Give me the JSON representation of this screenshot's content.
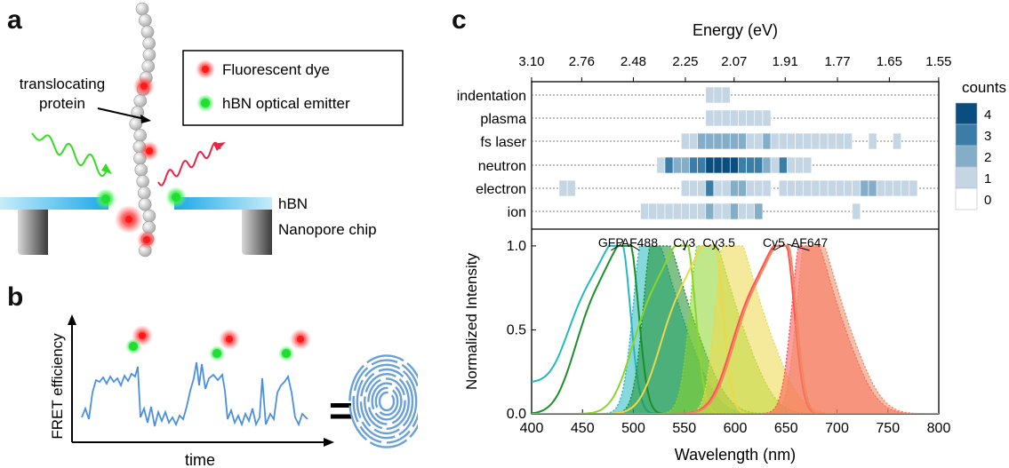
{
  "panels": {
    "a": "a",
    "b": "b",
    "c": "c"
  },
  "panel_a": {
    "protein_label": "translocating protein",
    "protein_label_lines": [
      "translocating",
      "protein"
    ],
    "legend": [
      {
        "label": "Fluorescent dye",
        "color": "#ff2a2a"
      },
      {
        "label": "hBN optical emitter",
        "color": "#22dd33"
      }
    ],
    "hbn_label": "hBN",
    "chip_label": "Nanopore chip"
  },
  "panel_b": {
    "ylabel": "FRET efficiency",
    "xlabel": "time",
    "equals": "="
  },
  "chart_data": [
    {
      "type": "heatmap",
      "top_axis_label": "Energy (eV)",
      "top_ticks": [
        "3.10",
        "2.76",
        "2.48",
        "2.25",
        "2.07",
        "1.91",
        "1.77",
        "1.65",
        "1.55"
      ],
      "rows": [
        "indentation",
        "plasma",
        "fs laser",
        "neutron",
        "electron",
        "ion"
      ],
      "colorbar": {
        "title": "counts",
        "ticks": [
          "4",
          "3",
          "2",
          "1",
          "0"
        ],
        "colors": [
          "#ffffff",
          "#c4d6e3",
          "#84aec8",
          "#3a7ea8",
          "#0a4d7f"
        ]
      },
      "cells": {
        "indentation": [
          [
            575,
            1
          ],
          [
            583,
            1
          ],
          [
            591,
            1
          ]
        ],
        "plasma": [
          [
            575,
            1
          ],
          [
            583,
            1
          ],
          [
            591,
            1
          ],
          [
            599,
            1
          ],
          [
            607,
            1
          ],
          [
            615,
            1
          ],
          [
            623,
            1
          ],
          [
            631,
            1
          ]
        ],
        "fs laser": [
          [
            551,
            1
          ],
          [
            559,
            1
          ],
          [
            567,
            2
          ],
          [
            575,
            2
          ],
          [
            583,
            2
          ],
          [
            591,
            2
          ],
          [
            599,
            2
          ],
          [
            607,
            2
          ],
          [
            615,
            1
          ],
          [
            623,
            1
          ],
          [
            631,
            2
          ],
          [
            639,
            1
          ],
          [
            647,
            1
          ],
          [
            655,
            1
          ],
          [
            663,
            1
          ],
          [
            671,
            1
          ],
          [
            679,
            1
          ],
          [
            687,
            1
          ],
          [
            695,
            1
          ],
          [
            703,
            1
          ],
          [
            711,
            1
          ],
          [
            735,
            1
          ],
          [
            759,
            1
          ]
        ],
        "neutron": [
          [
            527,
            1
          ],
          [
            535,
            3
          ],
          [
            543,
            2
          ],
          [
            551,
            2
          ],
          [
            559,
            3
          ],
          [
            567,
            3
          ],
          [
            575,
            4
          ],
          [
            583,
            4
          ],
          [
            591,
            4
          ],
          [
            599,
            4
          ],
          [
            607,
            3
          ],
          [
            615,
            3
          ],
          [
            623,
            3
          ],
          [
            631,
            2
          ],
          [
            639,
            1
          ],
          [
            647,
            3
          ],
          [
            655,
            1
          ],
          [
            663,
            1
          ],
          [
            671,
            1
          ]
        ],
        "electron": [
          [
            431,
            1
          ],
          [
            439,
            1
          ],
          [
            551,
            1
          ],
          [
            559,
            1
          ],
          [
            567,
            1
          ],
          [
            575,
            3
          ],
          [
            583,
            1
          ],
          [
            591,
            1
          ],
          [
            599,
            2
          ],
          [
            607,
            2
          ],
          [
            615,
            1
          ],
          [
            623,
            1
          ],
          [
            631,
            1
          ],
          [
            647,
            1
          ],
          [
            655,
            1
          ],
          [
            663,
            1
          ],
          [
            671,
            1
          ],
          [
            679,
            1
          ],
          [
            687,
            1
          ],
          [
            695,
            1
          ],
          [
            703,
            1
          ],
          [
            711,
            1
          ],
          [
            719,
            1
          ],
          [
            727,
            2
          ],
          [
            735,
            2
          ],
          [
            743,
            1
          ],
          [
            751,
            1
          ],
          [
            759,
            1
          ],
          [
            767,
            1
          ],
          [
            775,
            1
          ]
        ],
        "ion": [
          [
            511,
            1
          ],
          [
            519,
            1
          ],
          [
            527,
            1
          ],
          [
            535,
            1
          ],
          [
            543,
            1
          ],
          [
            551,
            1
          ],
          [
            559,
            1
          ],
          [
            567,
            1
          ],
          [
            575,
            2
          ],
          [
            583,
            1
          ],
          [
            591,
            1
          ],
          [
            599,
            2
          ],
          [
            607,
            1
          ],
          [
            615,
            1
          ],
          [
            623,
            2
          ],
          [
            719,
            1
          ]
        ]
      }
    },
    {
      "type": "line",
      "xlabel": "Wavelength (nm)",
      "ylabel": "Normalized Intensity",
      "xlim": [
        400,
        800
      ],
      "ylim": [
        0,
        1.1
      ],
      "xticks": [
        400,
        450,
        500,
        550,
        600,
        650,
        700,
        750,
        800
      ],
      "yticks": [
        "0.0",
        "0.5",
        "1.0"
      ],
      "series": [
        {
          "name": "GFP",
          "color": "#24b8c0",
          "abs_peak": 488,
          "em_peak": 510,
          "shoulder": 395
        },
        {
          "name": "AF488",
          "color": "#1c8f2a",
          "abs_peak": 496,
          "em_peak": 520
        },
        {
          "name": "Cy3",
          "color": "#88d62a",
          "abs_peak": 552,
          "em_peak": 566
        },
        {
          "name": "Cy3.5",
          "color": "#ecd84a",
          "abs_peak": 579,
          "em_peak": 591
        },
        {
          "name": "Cy5",
          "color": "#ff5252",
          "abs_peak": 649,
          "em_peak": 666
        },
        {
          "name": "AF647",
          "color": "#f08a62",
          "abs_peak": 651,
          "em_peak": 671
        }
      ]
    }
  ]
}
